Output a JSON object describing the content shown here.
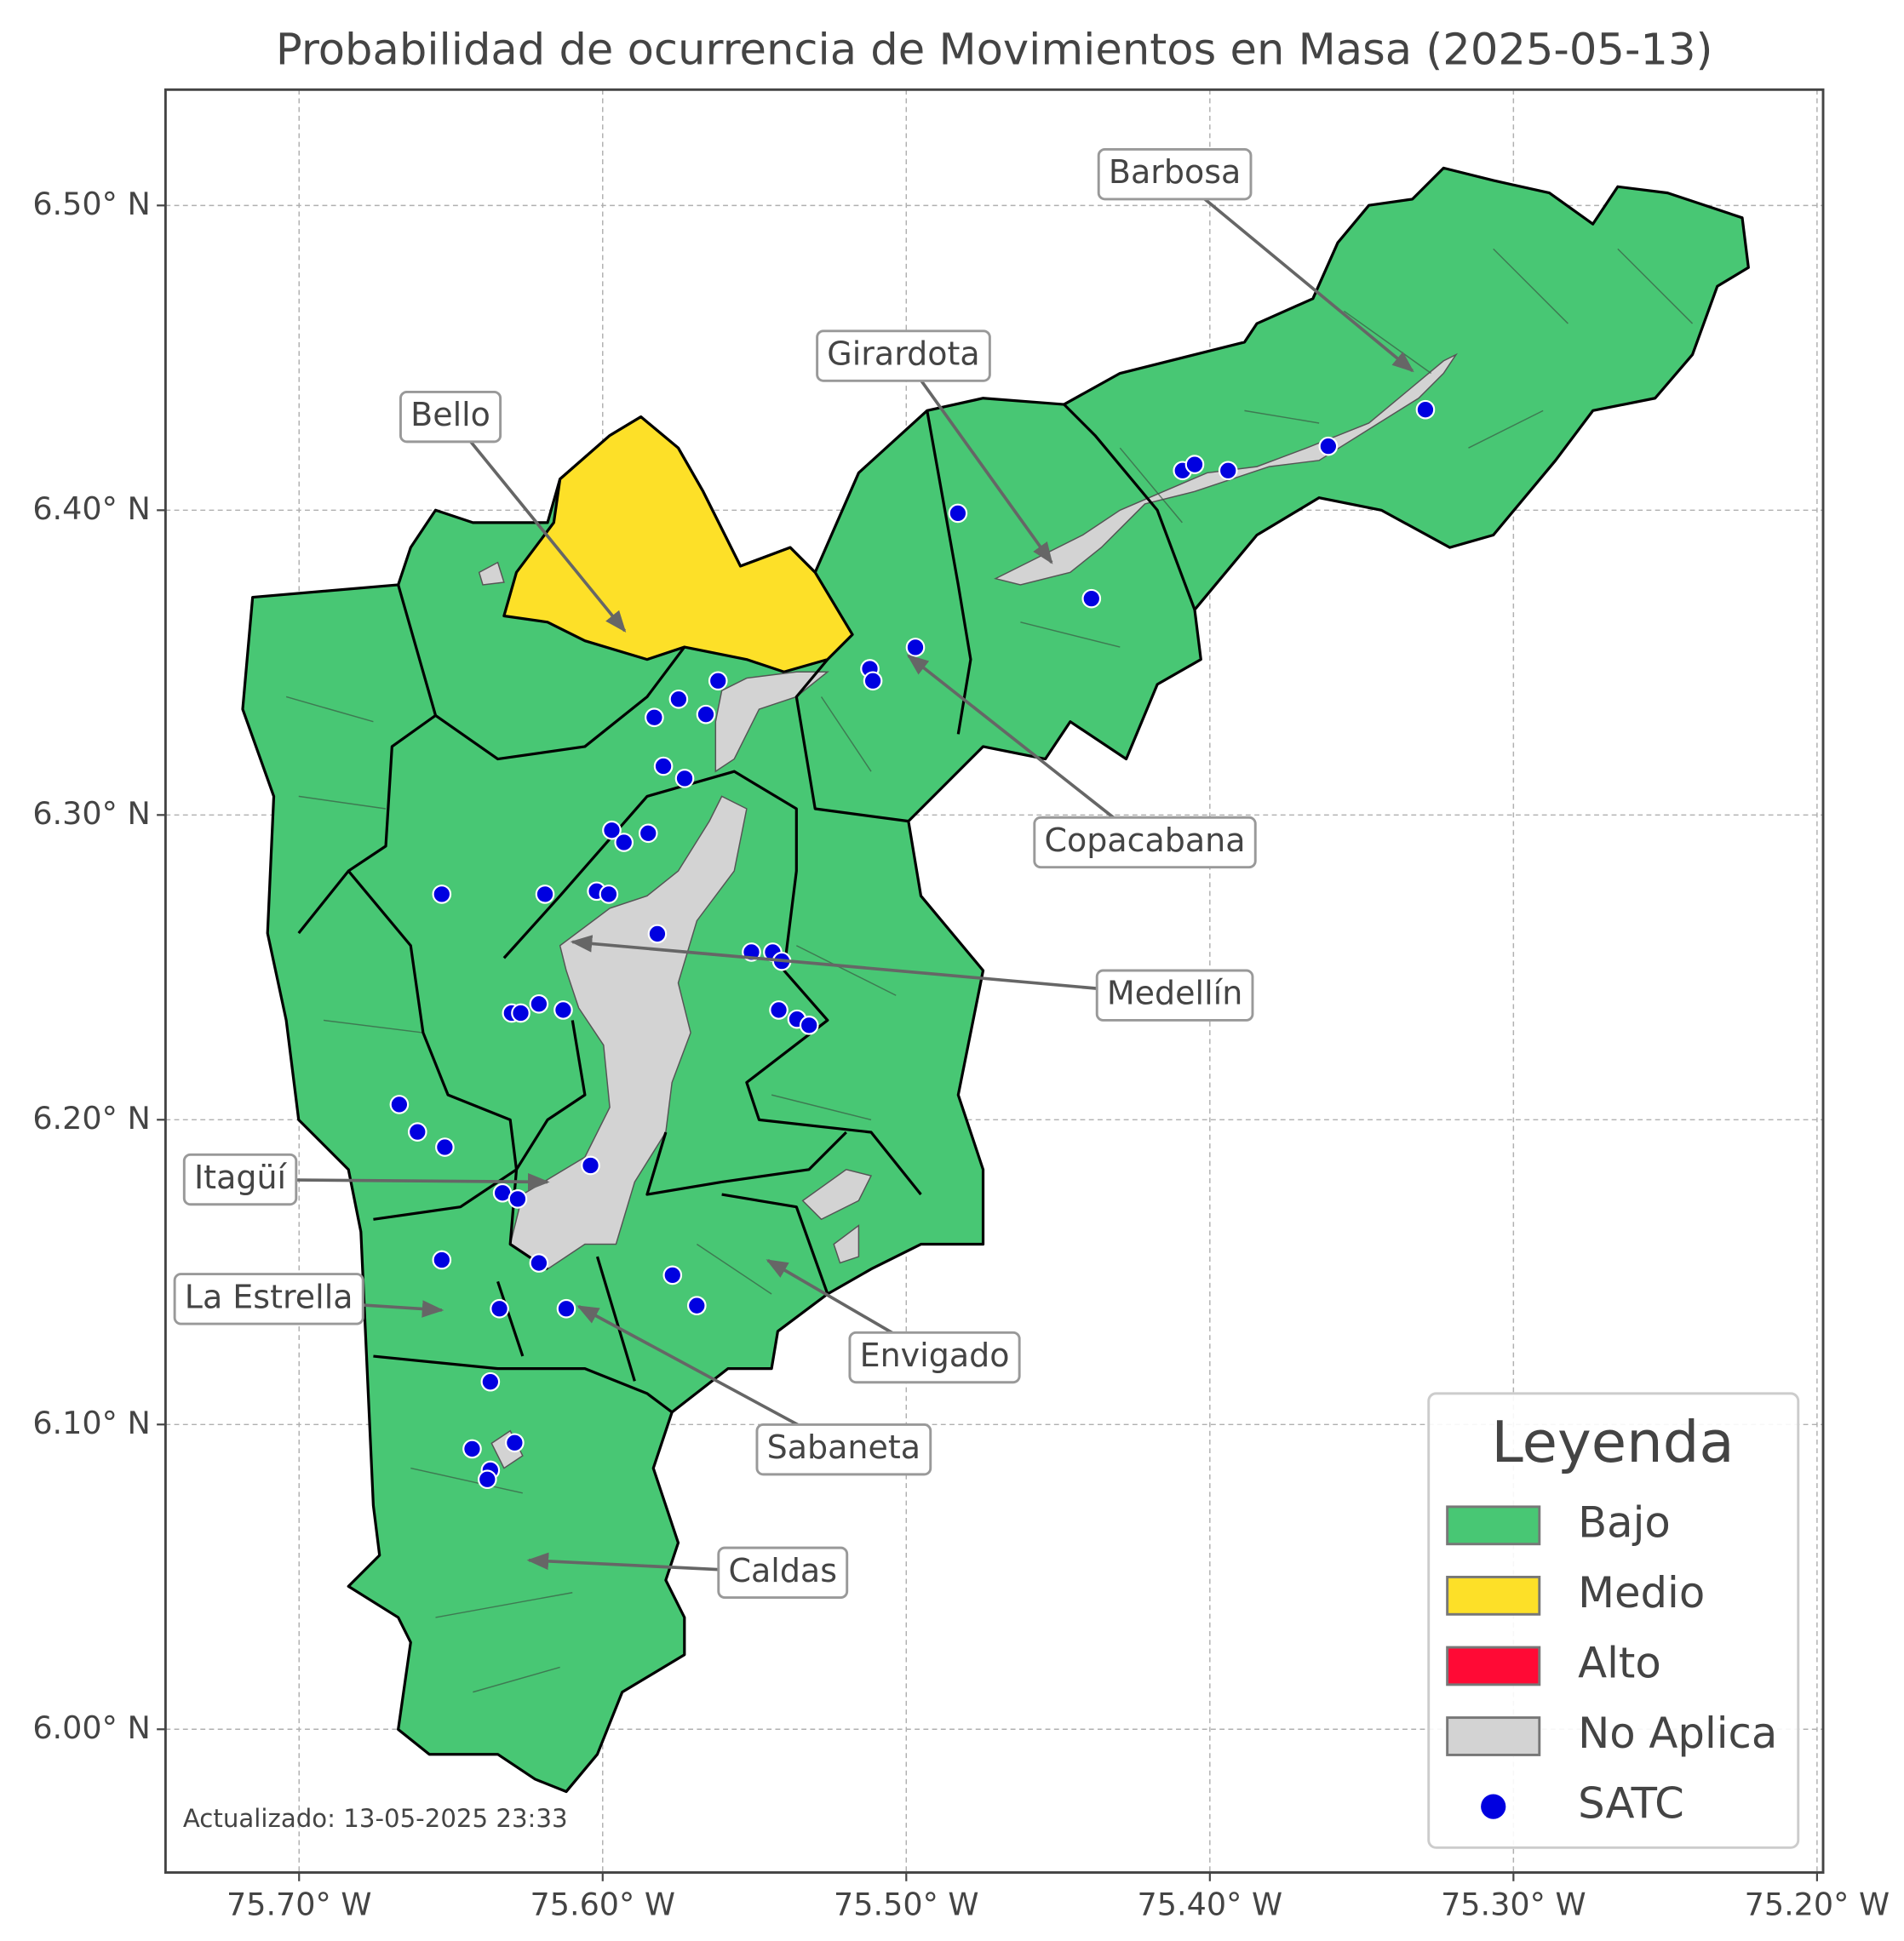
{
  "chart_data": {
    "type": "map",
    "title": "Probabilidad de ocurrencia de Movimientos en Masa (2025-05-13)",
    "xlim": [
      -75.744,
      -75.198
    ],
    "ylim": [
      5.953,
      6.538
    ],
    "xticks": [
      {
        "value": -75.7,
        "label": "75.70° W"
      },
      {
        "value": -75.6,
        "label": "75.60° W"
      },
      {
        "value": -75.5,
        "label": "75.50° W"
      },
      {
        "value": -75.4,
        "label": "75.40° W"
      },
      {
        "value": -75.3,
        "label": "75.30° W"
      },
      {
        "value": -75.2,
        "label": "75.20° W"
      }
    ],
    "yticks": [
      {
        "value": 6.0,
        "label": "6.00° N"
      },
      {
        "value": 6.1,
        "label": "6.10° N"
      },
      {
        "value": 6.2,
        "label": "6.20° N"
      },
      {
        "value": 6.3,
        "label": "6.30° N"
      },
      {
        "value": 6.4,
        "label": "6.40° N"
      },
      {
        "value": 6.5,
        "label": "6.50° N"
      }
    ],
    "grid": true,
    "annotations": [
      "Barbosa",
      "Girardota",
      "Bello",
      "Copacabana",
      "Medellín",
      "Itagüí",
      "La Estrella",
      "Envigado",
      "Sabaneta",
      "Caldas"
    ],
    "legend": {
      "title": "Leyenda",
      "position": "lower right",
      "entries": [
        {
          "name": "Bajo",
          "color": "#48c774"
        },
        {
          "name": "Medio",
          "color": "#fde028"
        },
        {
          "name": "Alto",
          "color": "#ff0a35"
        },
        {
          "name": "No Aplica",
          "color": "#d3d3d3"
        },
        {
          "name": "SATC",
          "color": "#0000e0"
        }
      ]
    },
    "stations": {
      "name": "SATC",
      "color": "#0000e0",
      "x": [
        -75.329,
        -75.361,
        -75.409,
        -75.405,
        -75.394,
        -75.483,
        -75.439,
        -75.497,
        -75.512,
        -75.511,
        -75.562,
        -75.575,
        -75.583,
        -75.566,
        -75.58,
        -75.573,
        -75.597,
        -75.593,
        -75.585,
        -75.653,
        -75.619,
        -75.602,
        -75.598,
        -75.582,
        -75.551,
        -75.544,
        -75.541,
        -75.542,
        -75.536,
        -75.532,
        -75.621,
        -75.613,
        -75.63,
        -75.627,
        -75.667,
        -75.661,
        -75.652,
        -75.604,
        -75.633,
        -75.628,
        -75.653,
        -75.621,
        -75.577,
        -75.569,
        -75.634,
        -75.612,
        -75.637,
        -75.643,
        -75.629,
        -75.637,
        -75.638
      ],
      "y": [
        6.433,
        6.421,
        6.413,
        6.415,
        6.413,
        6.399,
        6.371,
        6.355,
        6.348,
        6.344,
        6.344,
        6.338,
        6.332,
        6.333,
        6.316,
        6.312,
        6.295,
        6.291,
        6.294,
        6.274,
        6.274,
        6.275,
        6.274,
        6.261,
        6.255,
        6.255,
        6.252,
        6.236,
        6.233,
        6.231,
        6.238,
        6.236,
        6.235,
        6.235,
        6.205,
        6.196,
        6.191,
        6.185,
        6.176,
        6.174,
        6.154,
        6.153,
        6.149,
        6.139,
        6.138,
        6.138,
        6.114,
        6.092,
        6.094,
        6.085,
        6.082
      ]
    },
    "footnote": "Actualizado: 13-05-2025 23:33"
  }
}
